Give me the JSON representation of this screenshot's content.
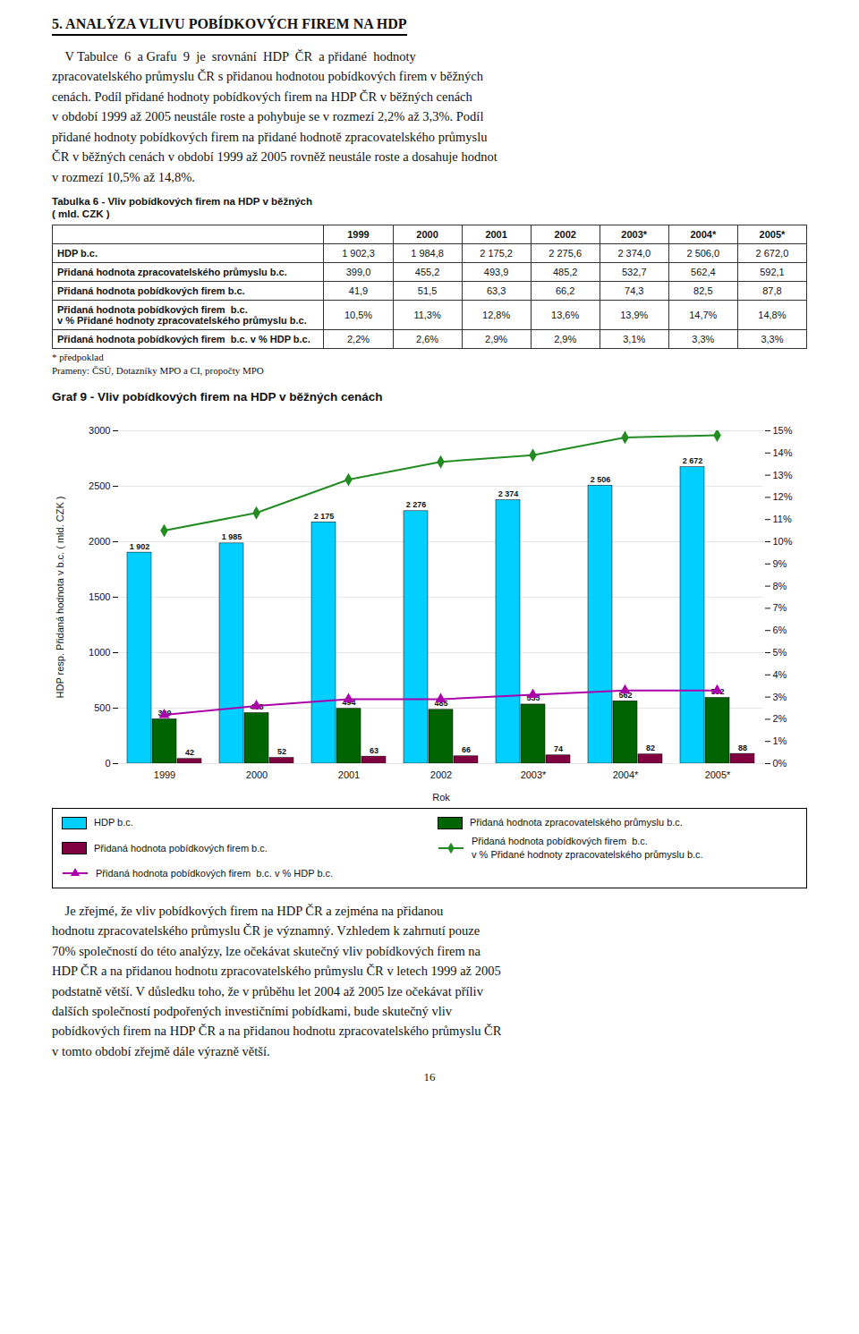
{
  "chart_data": [
    {
      "type": "text",
      "title": "5. ANALÝZA VLIVU POBÍDKOVÝCH FIREM NA HDP",
      "annotations": [
        "    V Tabulce  6  a Grafu  9  je  srovnání  HDP  ČR  a přidané  hodnoty\nzpracovatelského průmyslu ČR s přidanou hodnotou pobídkových firem v běžných\ncenách. Podíl přidané hodnoty pobídkových firem na HDP ČR v běžných cenách\nv období 1999 až 2005 neustále roste a pohybuje se v rozmezí 2,2% až 3,3%. Podíl\npřidané hodnoty pobídkových firem na přidané hodnotě zpracovatelského průmyslu\nČR v běžných cenách v období 1999 až 2005 rovněž neustále roste a dosahuje hodnot\nv rozmezí 10,5% až 14,8%."
      ]
    },
    {
      "type": "table",
      "title": "Tabulka 6 - Vliv pobídkových firem na HDP v běžných",
      "subtitle": "( mld. CZK )",
      "categories": [
        "1999",
        "2000",
        "2001",
        "2002",
        "2003*",
        "2004*",
        "2005*"
      ],
      "series": [
        {
          "name": "HDP b.c.",
          "values": [
            1902.3,
            1984.8,
            2175.2,
            2275.6,
            2374.0,
            2506.0,
            2672.0
          ],
          "value_labels": [
            "1 902,3",
            "1 984,8",
            "2 175,2",
            "2 275,6",
            "2 374,0",
            "2 506,0",
            "2 672,0"
          ]
        },
        {
          "name": "Přidaná hodnota zpracovatelského průmyslu b.c.",
          "values": [
            399.0,
            455.2,
            493.9,
            485.2,
            532.7,
            562.4,
            592.1
          ],
          "value_labels": [
            "399,0",
            "455,2",
            "493,9",
            "485,2",
            "532,7",
            "562,4",
            "592,1"
          ]
        },
        {
          "name": "Přidaná hodnota pobídkových firem b.c.",
          "values": [
            41.9,
            51.5,
            63.3,
            66.2,
            74.3,
            82.5,
            87.8
          ],
          "value_labels": [
            "41,9",
            "51,5",
            "63,3",
            "66,2",
            "74,3",
            "82,5",
            "87,8"
          ]
        },
        {
          "name": "Přidaná hodnota pobídkových firem  b.c.\nv % Přidané hodnoty zpracovatelského průmyslu b.c.",
          "values": [
            10.5,
            11.3,
            12.8,
            13.6,
            13.9,
            14.7,
            14.8
          ],
          "value_labels": [
            "10,5%",
            "11,3%",
            "12,8%",
            "13,6%",
            "13,9%",
            "14,7%",
            "14,8%"
          ]
        },
        {
          "name": "Přidaná hodnota pobídkových firem  b.c. v % HDP b.c.",
          "values": [
            2.2,
            2.6,
            2.9,
            2.9,
            3.1,
            3.3,
            3.3
          ],
          "value_labels": [
            "2,2%",
            "2,6%",
            "2,9%",
            "2,9%",
            "3,1%",
            "3,3%",
            "3,3%"
          ]
        }
      ],
      "annotations": [
        "* předpoklad",
        "Prameny: ČSÚ, Dotazníky MPO a CI, propočty MPO"
      ]
    },
    {
      "type": "bar",
      "title": "Graf 9 - Vliv pobídkových firem na HDP v běžných cenách",
      "xlabel": "Rok",
      "ylabel": "HDP resp. Přidaná hodnota v b.c. ( mld. CZK )",
      "categories": [
        "1999",
        "2000",
        "2001",
        "2002",
        "2003*",
        "2004*",
        "2005*"
      ],
      "ylim": [
        0,
        3000
      ],
      "yticks": [
        0,
        500,
        1000,
        1500,
        2000,
        2500,
        3000
      ],
      "y2lim": [
        0,
        15
      ],
      "y2ticks": [
        {
          "value": 0,
          "label": "0%"
        },
        {
          "value": 1,
          "label": "1%"
        },
        {
          "value": 2,
          "label": "2%"
        },
        {
          "value": 3,
          "label": "3%"
        },
        {
          "value": 4,
          "label": "4%"
        },
        {
          "value": 5,
          "label": "5%"
        },
        {
          "value": 6,
          "label": "6%"
        },
        {
          "value": 7,
          "label": "7%"
        },
        {
          "value": 8,
          "label": "8%"
        },
        {
          "value": 9,
          "label": "9%"
        },
        {
          "value": 10,
          "label": "10%"
        },
        {
          "value": 11,
          "label": "11%"
        },
        {
          "value": 12,
          "label": "12%"
        },
        {
          "value": 13,
          "label": "13%"
        },
        {
          "value": 14,
          "label": "14%"
        },
        {
          "value": 15,
          "label": "15%"
        }
      ],
      "grid": true,
      "legend": "bottom",
      "series": [
        {
          "name": "HDP b.c.",
          "type": "bar",
          "color": "#00CFFF",
          "data_labels": true,
          "values": [
            1902.3,
            1984.8,
            2175.2,
            2275.6,
            2374.0,
            2506.0,
            2672.0
          ],
          "value_labels": [
            "1 902",
            "1 985",
            "2 175",
            "2 276",
            "2 374",
            "2 506",
            "2 672"
          ]
        },
        {
          "name": "Přidaná hodnota zpracovatelského průmyslu b.c.",
          "type": "bar",
          "color": "#006400",
          "data_labels": true,
          "values": [
            399.0,
            455.2,
            493.9,
            485.2,
            532.7,
            562.4,
            592.1
          ],
          "value_labels": [
            "399",
            "455",
            "494",
            "485",
            "533",
            "562",
            "592"
          ]
        },
        {
          "name": "Přidaná hodnota pobídkových firem b.c.",
          "type": "bar",
          "color": "#800040",
          "data_labels": true,
          "values": [
            41.9,
            51.5,
            63.3,
            66.2,
            74.3,
            82.5,
            87.8
          ],
          "value_labels": [
            "42",
            "52",
            "63",
            "66",
            "74",
            "82",
            "88"
          ]
        },
        {
          "name": "Přidaná hodnota pobídkových firem  b.c.\nv % Přidané hodnoty zpracovatelského průmyslu b.c.",
          "type": "line",
          "axis": "y2",
          "color": "#228B22",
          "marker": "diamond",
          "values": [
            10.5,
            11.3,
            12.8,
            13.6,
            13.9,
            14.7,
            14.8
          ]
        },
        {
          "name": "Přidaná hodnota pobídkových firem  b.c. v % HDP b.c.",
          "type": "line",
          "axis": "y2",
          "color": "#AA00AA",
          "marker": "triangle",
          "values": [
            2.2,
            2.6,
            2.9,
            2.9,
            3.1,
            3.3,
            3.3
          ]
        }
      ]
    },
    {
      "type": "text",
      "annotations": [
        "    Je zřejmé, že vliv pobídkových firem na HDP ČR a zejména na přidanou\nhodnotu zpracovatelského průmyslu ČR je významný. Vzhledem k zahrnutí pouze\n70% společností do této analýzy, lze očekávat skutečný vliv pobídkových firem na\nHDP ČR a na přidanou hodnotu zpracovatelského průmyslu ČR v letech 1999 až 2005\npodstatně větší. V důsledku toho, že v průběhu let 2004 až 2005 lze očekávat příliv\ndalších společností podpořených investičními pobídkami, bude skutečný vliv\npobídkových firem na HDP ČR a na přidanou hodnotu zpracovatelského průmyslu ČR\nv tomto období zřejmě dále výrazně větší.",
        "16"
      ]
    }
  ]
}
